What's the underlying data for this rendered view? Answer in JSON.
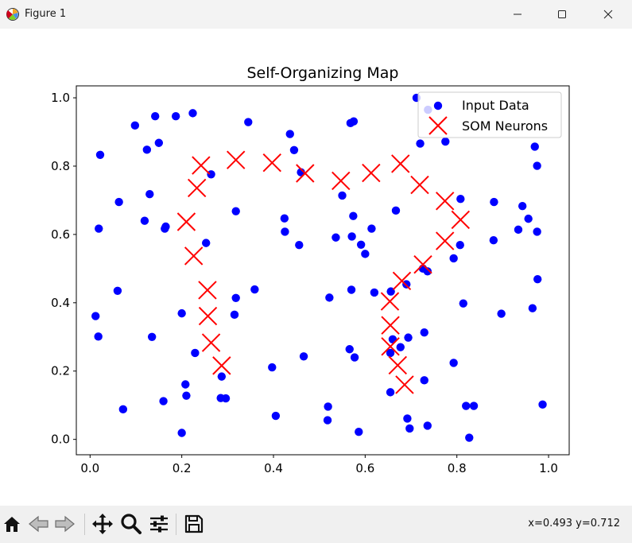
{
  "window": {
    "title": "Figure 1"
  },
  "toolbar": {
    "buttons": [
      "home-icon",
      "back-icon",
      "forward-icon",
      "pan-icon",
      "zoom-icon",
      "configure-icon",
      "save-icon"
    ],
    "coords": "x=0.493 y=0.712"
  },
  "chart_data": {
    "type": "scatter",
    "title": "Self-Organizing Map",
    "xlabel": "",
    "ylabel": "",
    "xlim": [
      -0.03,
      1.045
    ],
    "ylim": [
      -0.045,
      1.035
    ],
    "xticks": [
      "0.0",
      "0.2",
      "0.4",
      "0.6",
      "0.8",
      "1.0"
    ],
    "yticks": [
      "0.0",
      "0.2",
      "0.4",
      "0.6",
      "0.8",
      "1.0"
    ],
    "grid": false,
    "legend_position": "top-right",
    "series": [
      {
        "name": "Input Data",
        "marker": "circle",
        "color": "#0000ff",
        "points": [
          [
            0.022,
            0.833
          ],
          [
            0.098,
            0.919
          ],
          [
            0.142,
            0.946
          ],
          [
            0.187,
            0.946
          ],
          [
            0.224,
            0.955
          ],
          [
            0.124,
            0.848
          ],
          [
            0.15,
            0.868
          ],
          [
            0.345,
            0.929
          ],
          [
            0.436,
            0.894
          ],
          [
            0.445,
            0.847
          ],
          [
            0.568,
            0.926
          ],
          [
            0.575,
            0.931
          ],
          [
            0.712,
            1.0
          ],
          [
            0.737,
            0.965
          ],
          [
            0.72,
            0.866
          ],
          [
            0.775,
            0.872
          ],
          [
            0.97,
            0.857
          ],
          [
            0.975,
            0.801
          ],
          [
            0.264,
            0.776
          ],
          [
            0.46,
            0.782
          ],
          [
            0.063,
            0.695
          ],
          [
            0.13,
            0.718
          ],
          [
            0.119,
            0.64
          ],
          [
            0.163,
            0.617
          ],
          [
            0.165,
            0.623
          ],
          [
            0.019,
            0.617
          ],
          [
            0.318,
            0.668
          ],
          [
            0.424,
            0.647
          ],
          [
            0.425,
            0.608
          ],
          [
            0.456,
            0.569
          ],
          [
            0.55,
            0.714
          ],
          [
            0.574,
            0.654
          ],
          [
            0.571,
            0.594
          ],
          [
            0.536,
            0.591
          ],
          [
            0.591,
            0.57
          ],
          [
            0.6,
            0.543
          ],
          [
            0.614,
            0.617
          ],
          [
            0.667,
            0.67
          ],
          [
            0.808,
            0.704
          ],
          [
            0.881,
            0.695
          ],
          [
            0.943,
            0.683
          ],
          [
            0.956,
            0.646
          ],
          [
            0.934,
            0.614
          ],
          [
            0.975,
            0.608
          ],
          [
            0.88,
            0.583
          ],
          [
            0.807,
            0.569
          ],
          [
            0.793,
            0.53
          ],
          [
            0.726,
            0.5
          ],
          [
            0.736,
            0.492
          ],
          [
            0.253,
            0.575
          ],
          [
            0.06,
            0.435
          ],
          [
            0.012,
            0.361
          ],
          [
            0.018,
            0.301
          ],
          [
            0.135,
            0.3
          ],
          [
            0.2,
            0.369
          ],
          [
            0.229,
            0.253
          ],
          [
            0.318,
            0.414
          ],
          [
            0.315,
            0.365
          ],
          [
            0.359,
            0.439
          ],
          [
            0.522,
            0.415
          ],
          [
            0.57,
            0.438
          ],
          [
            0.62,
            0.43
          ],
          [
            0.656,
            0.433
          ],
          [
            0.69,
            0.454
          ],
          [
            0.814,
            0.398
          ],
          [
            0.976,
            0.469
          ],
          [
            0.965,
            0.384
          ],
          [
            0.897,
            0.368
          ],
          [
            0.566,
            0.264
          ],
          [
            0.577,
            0.24
          ],
          [
            0.66,
            0.293
          ],
          [
            0.655,
            0.253
          ],
          [
            0.677,
            0.27
          ],
          [
            0.694,
            0.298
          ],
          [
            0.729,
            0.313
          ],
          [
            0.793,
            0.224
          ],
          [
            0.729,
            0.173
          ],
          [
            0.655,
            0.138
          ],
          [
            0.466,
            0.243
          ],
          [
            0.397,
            0.211
          ],
          [
            0.287,
            0.184
          ],
          [
            0.208,
            0.161
          ],
          [
            0.21,
            0.128
          ],
          [
            0.285,
            0.121
          ],
          [
            0.296,
            0.12
          ],
          [
            0.16,
            0.112
          ],
          [
            0.072,
            0.088
          ],
          [
            0.2,
            0.019
          ],
          [
            0.405,
            0.069
          ],
          [
            0.519,
            0.096
          ],
          [
            0.518,
            0.056
          ],
          [
            0.586,
            0.022
          ],
          [
            0.692,
            0.061
          ],
          [
            0.697,
            0.032
          ],
          [
            0.736,
            0.04
          ],
          [
            0.82,
            0.098
          ],
          [
            0.837,
            0.098
          ],
          [
            0.827,
            0.005
          ],
          [
            0.987,
            0.102
          ]
        ]
      },
      {
        "name": "SOM Neurons",
        "marker": "x",
        "color": "#ff0000",
        "points": [
          [
            0.242,
            0.802
          ],
          [
            0.318,
            0.818
          ],
          [
            0.397,
            0.81
          ],
          [
            0.469,
            0.779
          ],
          [
            0.547,
            0.757
          ],
          [
            0.613,
            0.78
          ],
          [
            0.677,
            0.807
          ],
          [
            0.719,
            0.745
          ],
          [
            0.774,
            0.698
          ],
          [
            0.808,
            0.643
          ],
          [
            0.774,
            0.581
          ],
          [
            0.726,
            0.512
          ],
          [
            0.68,
            0.464
          ],
          [
            0.654,
            0.404
          ],
          [
            0.655,
            0.334
          ],
          [
            0.655,
            0.272
          ],
          [
            0.671,
            0.217
          ],
          [
            0.686,
            0.16
          ],
          [
            0.233,
            0.736
          ],
          [
            0.21,
            0.637
          ],
          [
            0.226,
            0.537
          ],
          [
            0.256,
            0.437
          ],
          [
            0.257,
            0.361
          ],
          [
            0.264,
            0.283
          ],
          [
            0.287,
            0.216
          ]
        ]
      }
    ]
  }
}
